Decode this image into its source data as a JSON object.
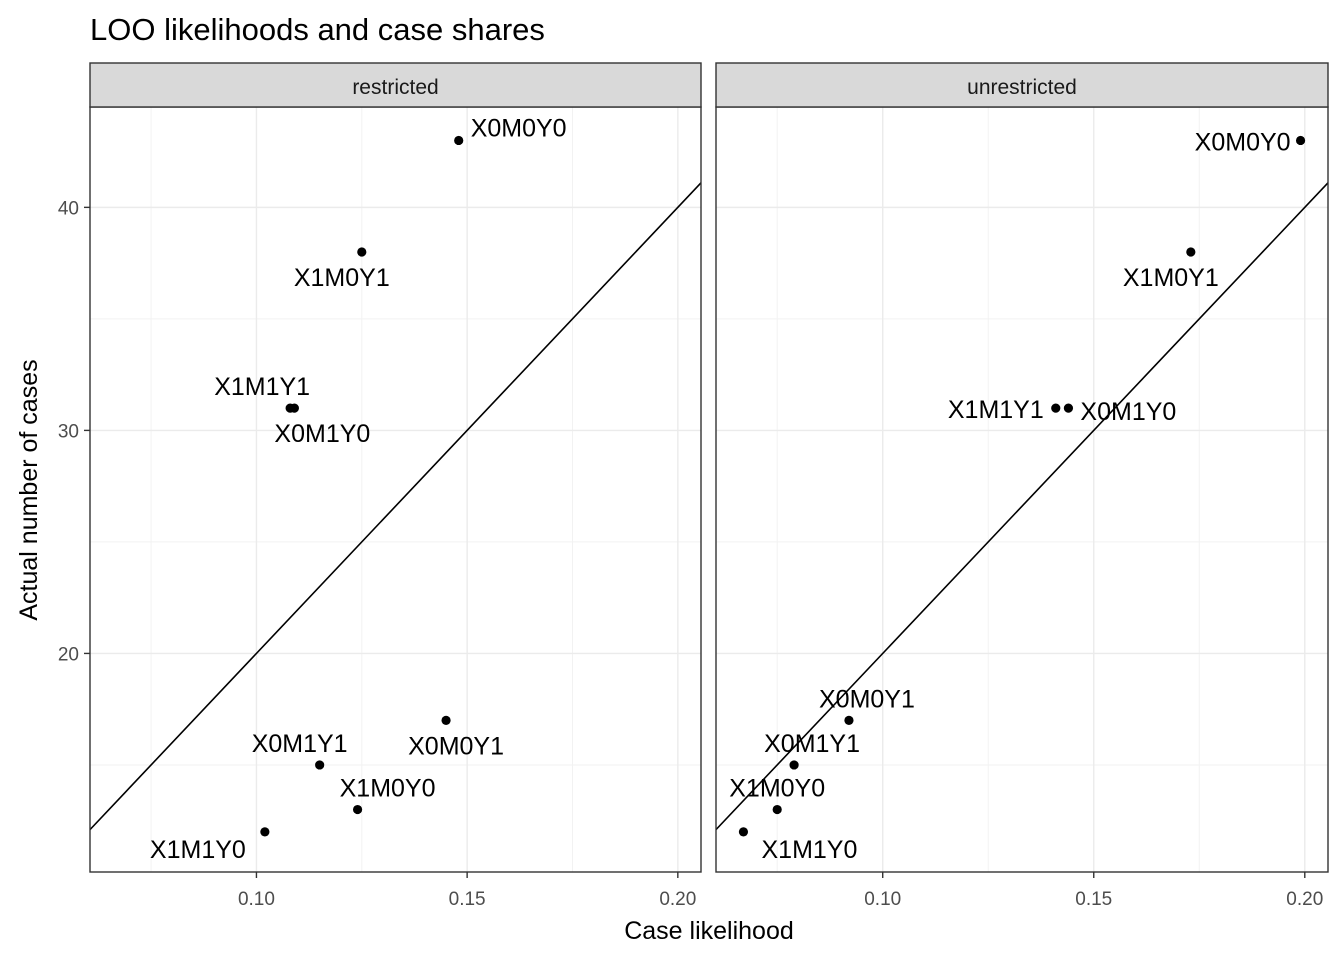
{
  "chart_data": {
    "type": "scatter",
    "title": "LOO likelihoods and case shares",
    "xlabel": "Case likelihood",
    "ylabel": "Actual number of cases",
    "xlim": [
      0.0605,
      0.2055
    ],
    "ylim": [
      10.2,
      44.5
    ],
    "x_ticks": [
      0.1,
      0.15,
      0.2
    ],
    "x_tick_labels": [
      "0.10",
      "0.15",
      "0.20"
    ],
    "y_ticks": [
      20,
      30,
      40
    ],
    "y_tick_labels": [
      "20",
      "30",
      "40"
    ],
    "grid": true,
    "reference_line": {
      "intercept": 0,
      "slope": 200
    },
    "panels": [
      {
        "name": "restricted",
        "points": [
          {
            "label": "X0M0Y0",
            "x": 0.148,
            "y": 43
          },
          {
            "label": "X1M0Y1",
            "x": 0.125,
            "y": 38
          },
          {
            "label": "X1M1Y1",
            "x": 0.108,
            "y": 31
          },
          {
            "label": "X0M1Y0",
            "x": 0.109,
            "y": 31
          },
          {
            "label": "X0M0Y1",
            "x": 0.145,
            "y": 17
          },
          {
            "label": "X0M1Y1",
            "x": 0.115,
            "y": 15
          },
          {
            "label": "X1M0Y0",
            "x": 0.124,
            "y": 13
          },
          {
            "label": "X1M1Y0",
            "x": 0.102,
            "y": 12
          }
        ]
      },
      {
        "name": "unrestricted",
        "points": [
          {
            "label": "X0M0Y0",
            "x": 0.199,
            "y": 43
          },
          {
            "label": "X1M0Y1",
            "x": 0.173,
            "y": 38
          },
          {
            "label": "X1M1Y1",
            "x": 0.141,
            "y": 31
          },
          {
            "label": "X0M1Y0",
            "x": 0.144,
            "y": 31
          },
          {
            "label": "X0M0Y1",
            "x": 0.092,
            "y": 17
          },
          {
            "label": "X0M1Y1",
            "x": 0.079,
            "y": 15
          },
          {
            "label": "X1M0Y0",
            "x": 0.075,
            "y": 13
          },
          {
            "label": "X1M1Y0",
            "x": 0.067,
            "y": 12
          }
        ]
      }
    ]
  }
}
